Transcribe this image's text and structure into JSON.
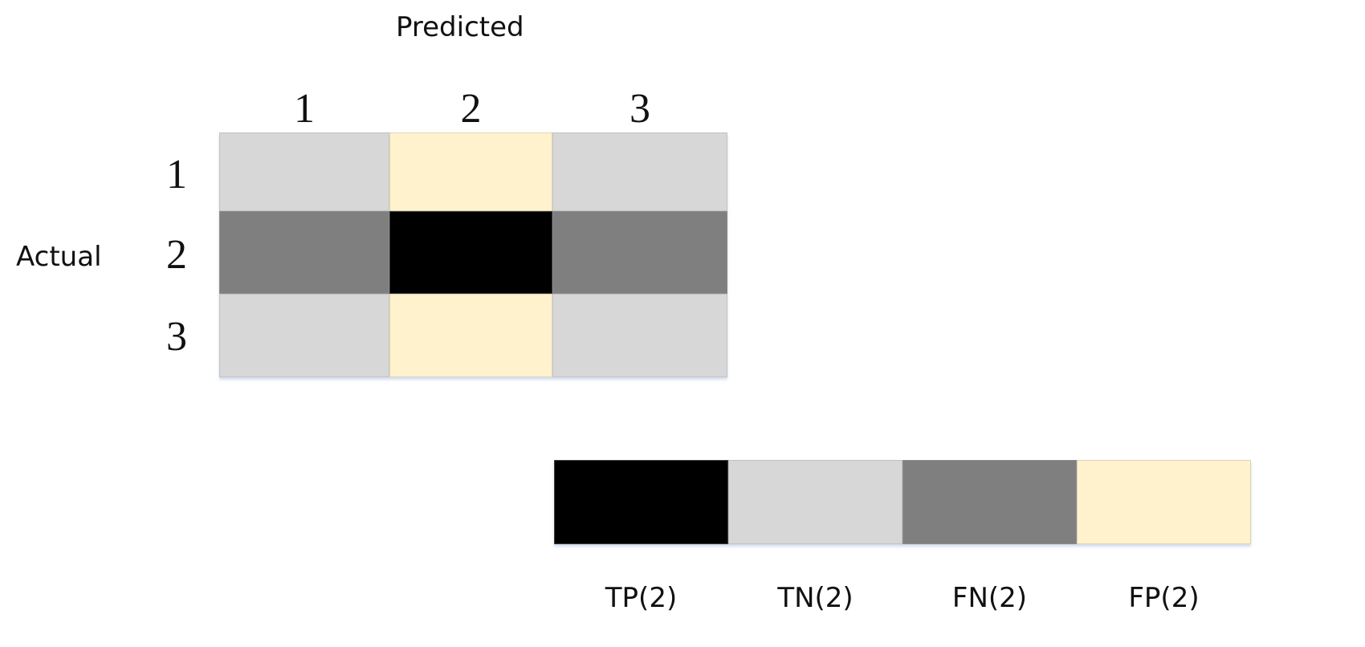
{
  "axis_titles": {
    "predicted": "Predicted",
    "actual": "Actual"
  },
  "column_labels": [
    "1",
    "2",
    "3"
  ],
  "row_labels": [
    "1",
    "2",
    "3"
  ],
  "colors": {
    "TP": "#000000",
    "TN": "#d7d7d7",
    "FN": "#7f7f7f",
    "FP": "#fff2cc"
  },
  "matrix": [
    [
      "TN",
      "FP",
      "TN"
    ],
    [
      "FN",
      "TP",
      "FN"
    ],
    [
      "TN",
      "FP",
      "TN"
    ]
  ],
  "legend": [
    {
      "key": "TP",
      "label": "TP(2)"
    },
    {
      "key": "TN",
      "label": "TN(2)"
    },
    {
      "key": "FN",
      "label": "FN(2)"
    },
    {
      "key": "FP",
      "label": "FP(2)"
    }
  ]
}
